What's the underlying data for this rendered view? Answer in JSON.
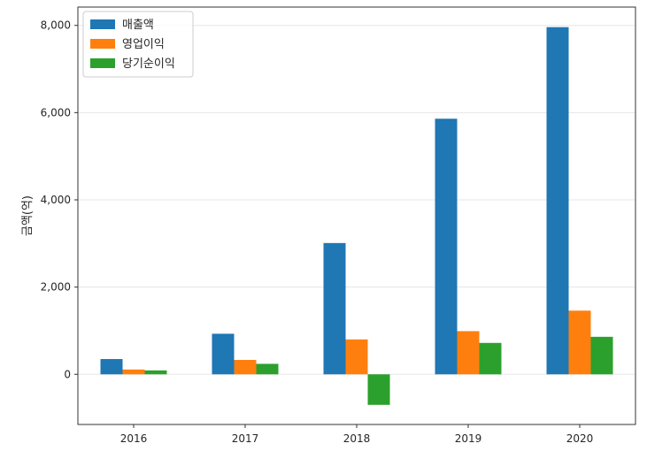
{
  "chart_data": {
    "type": "bar",
    "categories": [
      "2016",
      "2017",
      "2018",
      "2019",
      "2020"
    ],
    "series": [
      {
        "name": "매출액",
        "color": "#1f77b4",
        "values": [
          350,
          930,
          3010,
          5860,
          7960
        ]
      },
      {
        "name": "영업이익",
        "color": "#ff7f0e",
        "values": [
          110,
          330,
          800,
          990,
          1460
        ]
      },
      {
        "name": "당기순이익",
        "color": "#2ca02c",
        "values": [
          90,
          240,
          -700,
          720,
          860
        ]
      }
    ],
    "ylabel": "금액(억)",
    "xlabel": "",
    "ylim": [
      -1150,
      8420
    ],
    "yticks": [
      0,
      2000,
      4000,
      6000,
      8000
    ],
    "ytick_labels": [
      "0",
      "2,000",
      "4,000",
      "6,000",
      "8,000"
    ],
    "grid": "y",
    "legend": "top-left"
  }
}
